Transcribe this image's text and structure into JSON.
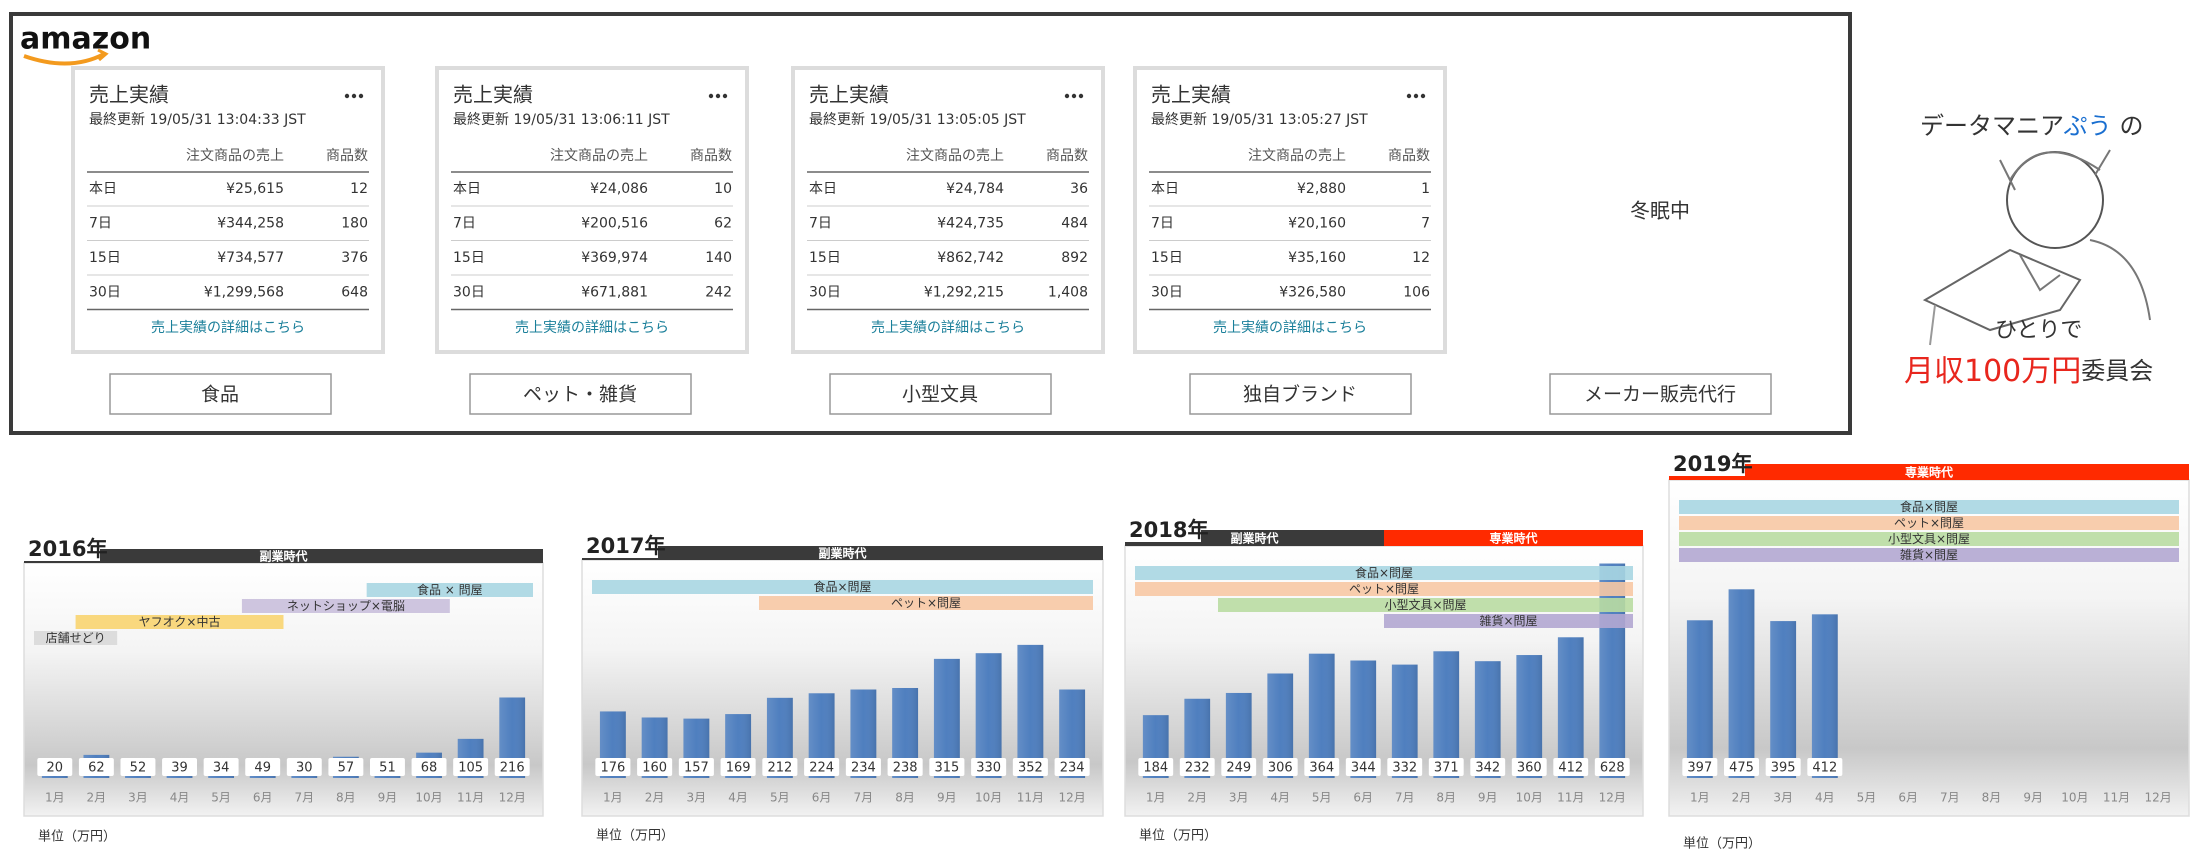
{
  "dashboard": {
    "logo": "amazon",
    "cards": [
      {
        "title": "売上実績",
        "updated": "最終更新 19/05/31 13:04:33 JST",
        "col_sales": "注文商品の売上",
        "col_count": "商品数",
        "rows": [
          [
            "本日",
            "¥25,615",
            "12"
          ],
          [
            "7日",
            "¥344,258",
            "180"
          ],
          [
            "15日",
            "¥734,577",
            "376"
          ],
          [
            "30日",
            "¥1,299,568",
            "648"
          ]
        ],
        "link": "売上実績の詳細はこちら"
      },
      {
        "title": "売上実績",
        "updated": "最終更新 19/05/31 13:06:11 JST",
        "col_sales": "注文商品の売上",
        "col_count": "商品数",
        "rows": [
          [
            "本日",
            "¥24,086",
            "10"
          ],
          [
            "7日",
            "¥200,516",
            "62"
          ],
          [
            "15日",
            "¥369,974",
            "140"
          ],
          [
            "30日",
            "¥671,881",
            "242"
          ]
        ],
        "link": "売上実績の詳細はこちら"
      },
      {
        "title": "売上実績",
        "updated": "最終更新 19/05/31 13:05:05 JST",
        "col_sales": "注文商品の売上",
        "col_count": "商品数",
        "rows": [
          [
            "本日",
            "¥24,784",
            "36"
          ],
          [
            "7日",
            "¥424,735",
            "484"
          ],
          [
            "15日",
            "¥862,742",
            "892"
          ],
          [
            "30日",
            "¥1,292,215",
            "1,408"
          ]
        ],
        "link": "売上実績の詳細はこちら"
      },
      {
        "title": "売上実績",
        "updated": "最終更新 19/05/31 13:05:27 JST",
        "col_sales": "注文商品の売上",
        "col_count": "商品数",
        "rows": [
          [
            "本日",
            "¥2,880",
            "1"
          ],
          [
            "7日",
            "¥20,160",
            "7"
          ],
          [
            "15日",
            "¥35,160",
            "12"
          ],
          [
            "30日",
            "¥326,580",
            "106"
          ]
        ],
        "link": "売上実績の詳細はこちら"
      }
    ],
    "dormant": "冬眠中",
    "buttons": [
      "食品",
      "ペット・雑貨",
      "小型文具",
      "独自ブランド",
      "メーカー販売代行"
    ]
  },
  "branding": {
    "line1": [
      "データマニア",
      "ぷう",
      "の"
    ],
    "line2": "ひとりで",
    "line3": [
      "月収100万円",
      "委員会"
    ]
  },
  "chart_data": [
    {
      "type": "bar",
      "title": "2016年",
      "eras": [
        {
          "label": "副業時代",
          "color": "#3a3a3a",
          "start": 1,
          "end": 12
        }
      ],
      "periods": [
        {
          "label": "食品 × 問屋",
          "color": "#a8d6e2",
          "start": 9,
          "end": 12
        },
        {
          "label": "ネットショップ×電脳",
          "color": "#c9bfdc",
          "start": 6,
          "end": 10
        },
        {
          "label": "ヤフオク×中古",
          "color": "#f8d470",
          "start": 2,
          "end": 6
        },
        {
          "label": "店舗せどり",
          "color": "#d9d9d9",
          "start": 1,
          "end": 2
        }
      ],
      "categories": [
        "1月",
        "2月",
        "3月",
        "4月",
        "5月",
        "6月",
        "7月",
        "8月",
        "9月",
        "10月",
        "11月",
        "12月"
      ],
      "values": [
        20,
        62,
        52,
        39,
        34,
        49,
        30,
        57,
        51,
        68,
        105,
        216
      ],
      "color": "#4f7fbf",
      "ylim": [
        0,
        550
      ],
      "note": "単位（万円）"
    },
    {
      "type": "bar",
      "title": "2017年",
      "eras": [
        {
          "label": "副業時代",
          "color": "#3a3a3a",
          "start": 1,
          "end": 12
        }
      ],
      "periods": [
        {
          "label": "食品×問屋",
          "color": "#a8d6e2",
          "start": 1,
          "end": 12
        },
        {
          "label": "ペット×問屋",
          "color": "#f7c8a4",
          "start": 5,
          "end": 12
        }
      ],
      "categories": [
        "1月",
        "2月",
        "3月",
        "4月",
        "5月",
        "6月",
        "7月",
        "8月",
        "9月",
        "10月",
        "11月",
        "12月"
      ],
      "values": [
        176,
        160,
        157,
        169,
        212,
        224,
        234,
        238,
        315,
        330,
        352,
        234
      ],
      "color": "#4f7fbf",
      "ylim": [
        0,
        550
      ],
      "note": "単位（万円）"
    },
    {
      "type": "bar",
      "title": "2018年",
      "eras": [
        {
          "label": "副業時代",
          "color": "#3a3a3a",
          "start": 1,
          "end": 6
        },
        {
          "label": "専業時代",
          "color": "#ff2a00",
          "start": 7,
          "end": 12
        }
      ],
      "periods": [
        {
          "label": "食品×問屋",
          "color": "#a8d6e2",
          "start": 1,
          "end": 12
        },
        {
          "label": "ペット×問屋",
          "color": "#f7c8a4",
          "start": 1,
          "end": 12
        },
        {
          "label": "小型文具×問屋",
          "color": "#b9dca2",
          "start": 3,
          "end": 12
        },
        {
          "label": "雑貨×問屋",
          "color": "#b3a7d1",
          "start": 7,
          "end": 12
        }
      ],
      "categories": [
        "1月",
        "2月",
        "3月",
        "4月",
        "5月",
        "6月",
        "7月",
        "8月",
        "9月",
        "10月",
        "11月",
        "12月"
      ],
      "values": [
        184,
        232,
        249,
        306,
        364,
        344,
        332,
        371,
        342,
        360,
        412,
        628
      ],
      "color": "#4f7fbf",
      "ylim": [
        0,
        650
      ],
      "note": "単位（万円）"
    },
    {
      "type": "bar",
      "title": "2019年",
      "eras": [
        {
          "label": "専業時代",
          "color": "#ff2a00",
          "start": 1,
          "end": 12
        }
      ],
      "periods": [
        {
          "label": "食品×問屋",
          "color": "#a8d6e2",
          "start": 1,
          "end": 12
        },
        {
          "label": "ペット×問屋",
          "color": "#f7c8a4",
          "start": 1,
          "end": 12
        },
        {
          "label": "小型文具×問屋",
          "color": "#b9dca2",
          "start": 1,
          "end": 12
        },
        {
          "label": "雑貨×問屋",
          "color": "#b3a7d1",
          "start": 1,
          "end": 12
        }
      ],
      "categories": [
        "1月",
        "2月",
        "3月",
        "4月",
        "5月",
        "6月",
        "7月",
        "8月",
        "9月",
        "10月",
        "11月",
        "12月"
      ],
      "values": [
        397,
        475,
        395,
        412,
        null,
        null,
        null,
        null,
        null,
        null,
        null,
        null
      ],
      "color": "#4f7fbf",
      "ylim": [
        0,
        725
      ],
      "note": "単位（万円）"
    }
  ]
}
